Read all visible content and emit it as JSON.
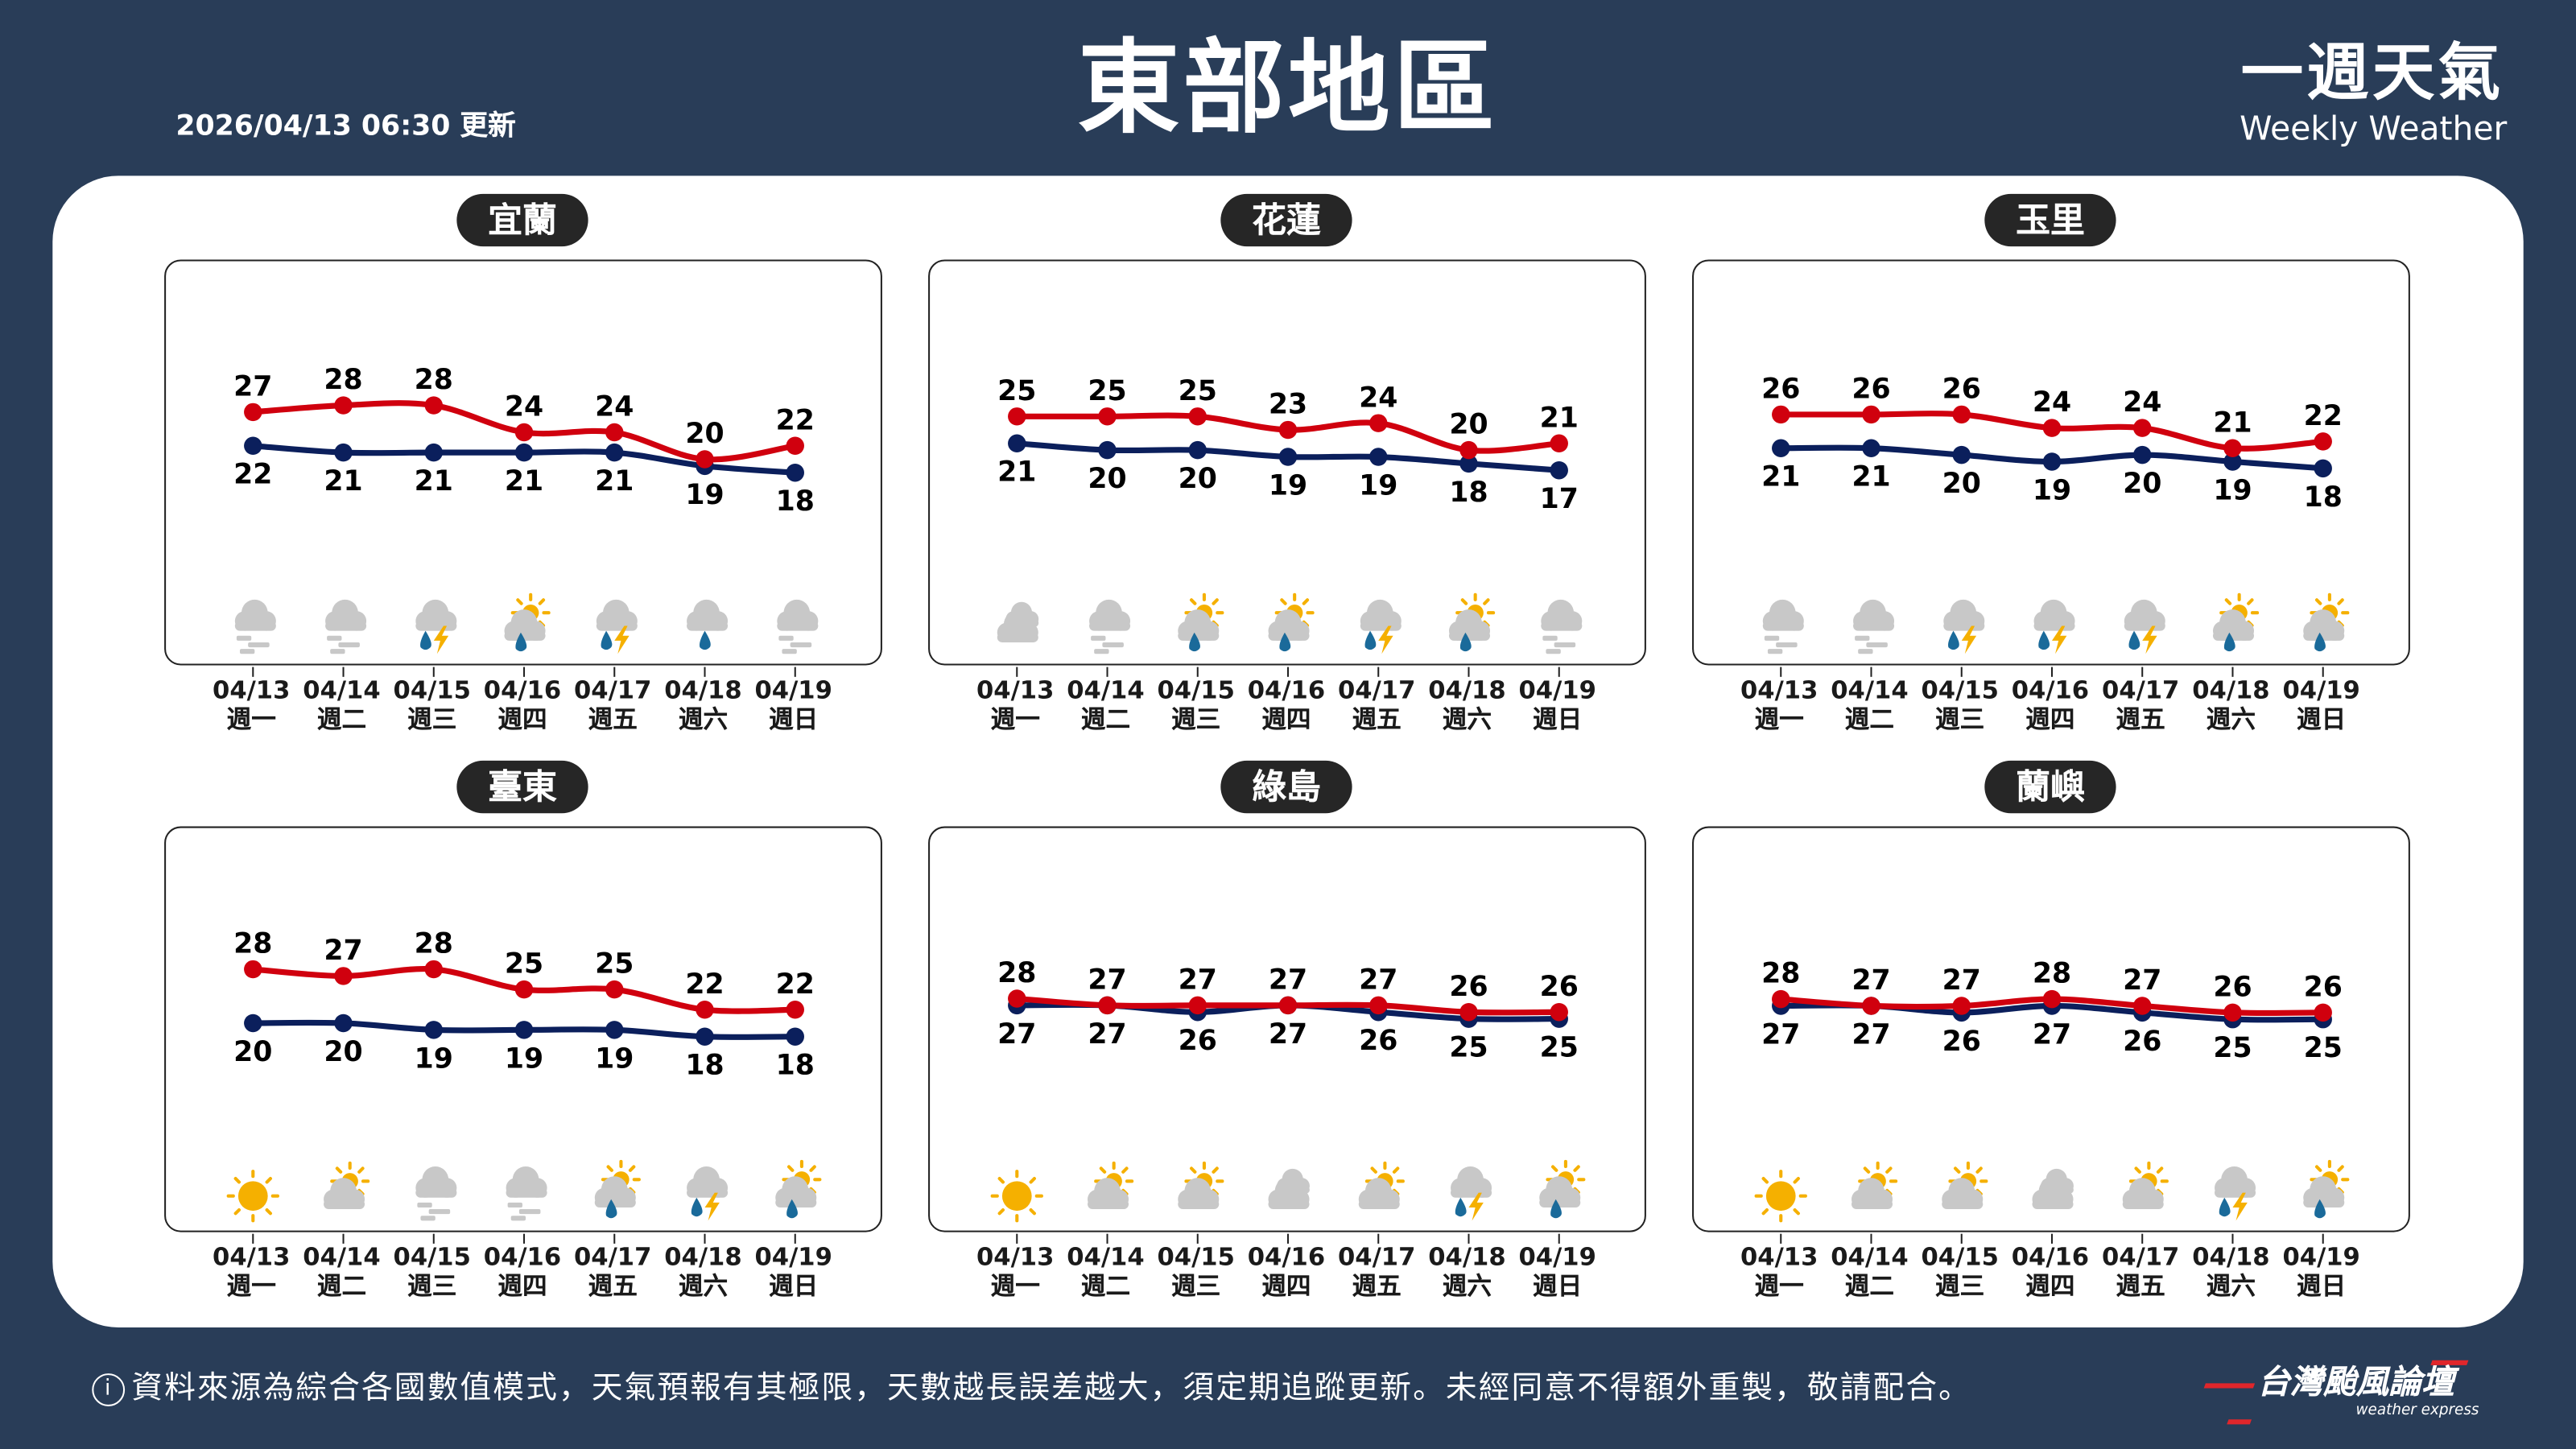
{
  "header": {
    "title": "東部地區",
    "updated": "2026/04/13 06:30 更新",
    "brand_zh": "一週天氣",
    "brand_en": "Weekly Weather"
  },
  "colors": {
    "background": "#293d58",
    "high": "#d0000e",
    "low": "#0b1f5c",
    "sun": "#f5b000",
    "rain": "#1a6a9a",
    "cloud": "#c8c8c8"
  },
  "dates": [
    "04/13",
    "04/14",
    "04/15",
    "04/16",
    "04/17",
    "04/18",
    "04/19"
  ],
  "weekdays": [
    "週一",
    "週二",
    "週三",
    "週四",
    "週五",
    "週六",
    "週日"
  ],
  "panels": [
    {
      "name": "宜蘭",
      "high": [
        27,
        28,
        28,
        24,
        24,
        20,
        22
      ],
      "low": [
        22,
        21,
        21,
        21,
        21,
        19,
        18
      ],
      "icons": [
        "fog",
        "fog",
        "thunder-rain",
        "partly-sunny-rain",
        "thunder-rain",
        "rain",
        "fog"
      ]
    },
    {
      "name": "花蓮",
      "high": [
        25,
        25,
        25,
        23,
        24,
        20,
        21
      ],
      "low": [
        21,
        20,
        20,
        19,
        19,
        18,
        17
      ],
      "icons": [
        "cloudy",
        "fog",
        "partly-sunny-rain",
        "partly-sunny-rain",
        "thunder-rain",
        "partly-sunny-rain",
        "fog"
      ]
    },
    {
      "name": "玉里",
      "high": [
        26,
        26,
        26,
        24,
        24,
        21,
        22
      ],
      "low": [
        21,
        21,
        20,
        19,
        20,
        19,
        18
      ],
      "icons": [
        "fog",
        "fog",
        "thunder-rain",
        "thunder-rain",
        "thunder-rain",
        "partly-sunny-rain",
        "partly-sunny-rain"
      ]
    },
    {
      "name": "臺東",
      "high": [
        28,
        27,
        28,
        25,
        25,
        22,
        22
      ],
      "low": [
        20,
        20,
        19,
        19,
        19,
        18,
        18
      ],
      "icons": [
        "sunny",
        "partly-cloudy",
        "fog",
        "fog",
        "partly-sunny-rain",
        "thunder-rain",
        "partly-sunny-rain"
      ]
    },
    {
      "name": "綠島",
      "high": [
        28,
        27,
        27,
        27,
        27,
        26,
        26
      ],
      "low": [
        27,
        27,
        26,
        27,
        26,
        25,
        25
      ],
      "icons": [
        "sunny",
        "partly-cloudy",
        "partly-cloudy",
        "cloudy",
        "partly-cloudy",
        "thunder-rain",
        "partly-sunny-rain"
      ]
    },
    {
      "name": "蘭嶼",
      "high": [
        28,
        27,
        27,
        28,
        27,
        26,
        26
      ],
      "low": [
        27,
        27,
        26,
        27,
        26,
        25,
        25
      ],
      "icons": [
        "sunny",
        "partly-cloudy",
        "partly-cloudy",
        "cloudy",
        "partly-cloudy",
        "thunder-rain",
        "partly-sunny-rain"
      ]
    }
  ],
  "footer": {
    "info_icon": "i",
    "disclaimer": "資料來源為綜合各國數值模式，天氣預報有其極限，天數越長誤差越大，須定期追蹤更新。未經同意不得額外重製，敬請配合。",
    "logo_zh": "台灣颱風論壇",
    "logo_en": "weather express"
  }
}
